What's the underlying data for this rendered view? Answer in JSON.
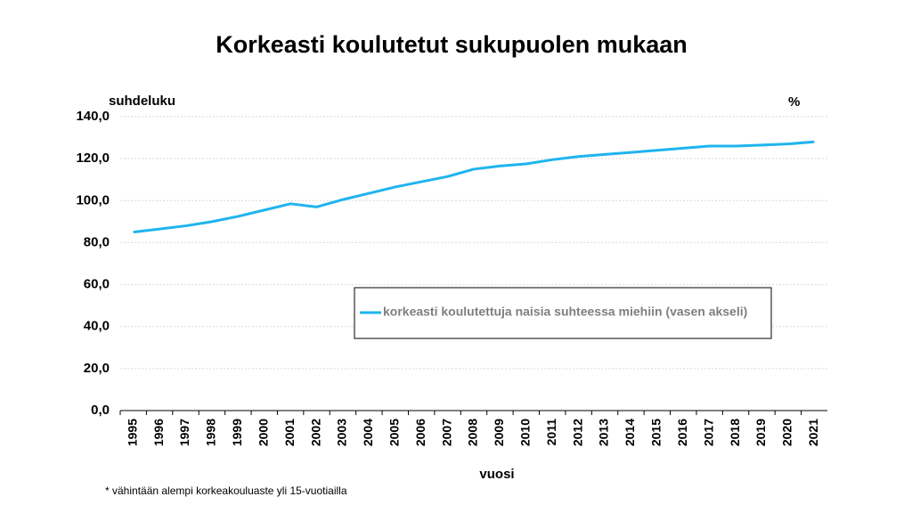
{
  "chart_data": {
    "type": "line",
    "title": "Korkeasti koulutetut sukupuolen mukaan",
    "y_label": "suhdeluku",
    "y2_label": "%",
    "x_label": "vuosi",
    "footnote": "* vähintään alempi korkeakouluaste yli 15-vuotiailla",
    "categories": [
      "1995",
      "1996",
      "1997",
      "1998",
      "1999",
      "2000",
      "2001",
      "2002",
      "2003",
      "2004",
      "2005",
      "2006",
      "2007",
      "2008",
      "2009",
      "2010",
      "2011",
      "2012",
      "2013",
      "2014",
      "2015",
      "2016",
      "2017",
      "2018",
      "2019",
      "2020",
      "2021"
    ],
    "series": [
      {
        "name": "korkeasti koulutettuja naisia suhteessa miehiin (vasen akseli)",
        "color": "#1fb4ef",
        "values": [
          85,
          86.5,
          88,
          90,
          92.5,
          95.5,
          98.5,
          97,
          100.5,
          103.5,
          106.5,
          109,
          111.5,
          115,
          116.5,
          117.5,
          119.5,
          121,
          122,
          123,
          124,
          125,
          126,
          126,
          126.5,
          127,
          128
        ]
      }
    ],
    "ylim": [
      0,
      140
    ],
    "yticks": [
      {
        "value": 0,
        "label": "0,0"
      },
      {
        "value": 20,
        "label": "20,0"
      },
      {
        "value": 40,
        "label": "40,0"
      },
      {
        "value": 60,
        "label": "60,0"
      },
      {
        "value": 80,
        "label": "80,0"
      },
      {
        "value": 100,
        "label": "100,0"
      },
      {
        "value": 120,
        "label": "120,0"
      },
      {
        "value": 140,
        "label": "140,0"
      }
    ],
    "grid": true
  }
}
